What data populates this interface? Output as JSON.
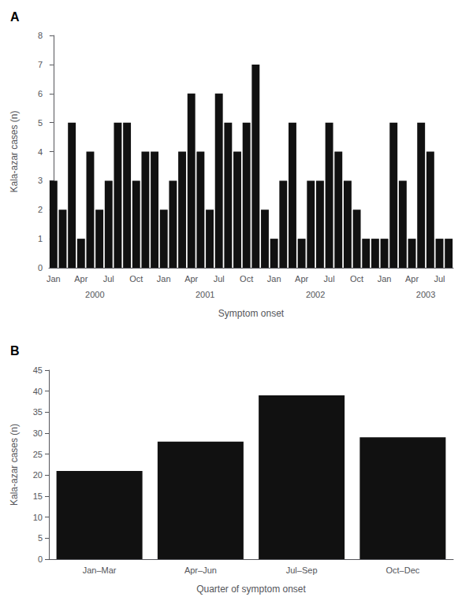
{
  "chart_data": [
    {
      "type": "bar",
      "title": "A",
      "categories": [
        "Jan",
        null,
        null,
        "Apr",
        null,
        null,
        "Jul",
        null,
        null,
        "Oct",
        null,
        null,
        "Jan",
        null,
        null,
        "Apr",
        null,
        null,
        "Jul",
        null,
        null,
        "Oct",
        null,
        null,
        "Jan",
        null,
        null,
        "Apr",
        null,
        null,
        "Jul",
        null,
        null,
        "Oct",
        null,
        null,
        "Jan",
        null,
        null,
        "Apr",
        null,
        null,
        "Jul",
        null
      ],
      "values": [
        3,
        2,
        5,
        1,
        4,
        2,
        3,
        5,
        5,
        3,
        4,
        4,
        2,
        3,
        4,
        6,
        4,
        2,
        6,
        5,
        4,
        5,
        7,
        2,
        1,
        3,
        5,
        1,
        3,
        3,
        5,
        4,
        3,
        2,
        1,
        1,
        1,
        5,
        3,
        1,
        5,
        4,
        1,
        1
      ],
      "annotations": [
        {
          "text": "2000",
          "x": 4.5
        },
        {
          "text": "2001",
          "x": 16.5
        },
        {
          "text": "2002",
          "x": 28.5
        },
        {
          "text": "2003",
          "x": 40.5
        }
      ],
      "xlabel": "Symptom onset",
      "ylabel": "Kala-azar cases (n)",
      "ylim": [
        0,
        8
      ],
      "yticks": [
        0,
        1,
        2,
        3,
        4,
        5,
        6,
        7,
        8
      ],
      "color": "#111111",
      "grid": false
    },
    {
      "type": "bar",
      "title": "B",
      "categories": [
        "Jan–Mar",
        "Apr–Jun",
        "Jul–Sep",
        "Oct–Dec"
      ],
      "values": [
        21,
        28,
        39,
        29
      ],
      "xlabel": "Quarter of symptom onset",
      "ylabel": "Kala-azar cases (n)",
      "ylim": [
        0,
        45
      ],
      "yticks": [
        0,
        5,
        10,
        15,
        20,
        25,
        30,
        35,
        40,
        45
      ],
      "color": "#111111",
      "grid": false
    }
  ]
}
